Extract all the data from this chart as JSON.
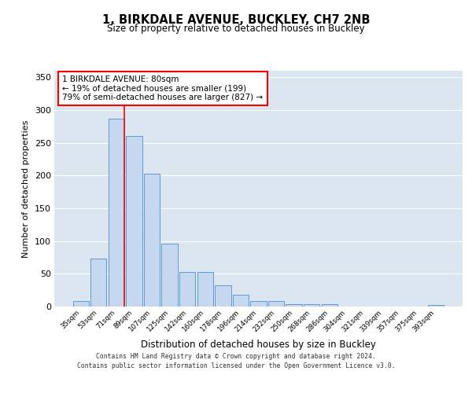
{
  "title_line1": "1, BIRKDALE AVENUE, BUCKLEY, CH7 2NB",
  "title_line2": "Size of property relative to detached houses in Buckley",
  "xlabel": "Distribution of detached houses by size in Buckley",
  "ylabel": "Number of detached properties",
  "categories": [
    "35sqm",
    "53sqm",
    "71sqm",
    "89sqm",
    "107sqm",
    "125sqm",
    "142sqm",
    "160sqm",
    "178sqm",
    "196sqm",
    "214sqm",
    "232sqm",
    "250sqm",
    "268sqm",
    "286sqm",
    "304sqm",
    "321sqm",
    "339sqm",
    "357sqm",
    "375sqm",
    "393sqm"
  ],
  "values": [
    9,
    73,
    287,
    260,
    203,
    96,
    53,
    53,
    32,
    18,
    8,
    8,
    4,
    4,
    4,
    0,
    0,
    0,
    0,
    0,
    3
  ],
  "bar_color": "#c5d8f0",
  "bar_edge_color": "#5b9bd5",
  "annotation_text": "1 BIRKDALE AVENUE: 80sqm\n← 19% of detached houses are smaller (199)\n79% of semi-detached houses are larger (827) →",
  "annotation_box_color": "white",
  "annotation_box_edge": "red",
  "ylim": [
    0,
    360
  ],
  "yticks": [
    0,
    50,
    100,
    150,
    200,
    250,
    300,
    350
  ],
  "background_color": "#dce6f0",
  "grid_color": "white",
  "footer_line1": "Contains HM Land Registry data © Crown copyright and database right 2024.",
  "footer_line2": "Contains public sector information licensed under the Open Government Licence v3.0."
}
